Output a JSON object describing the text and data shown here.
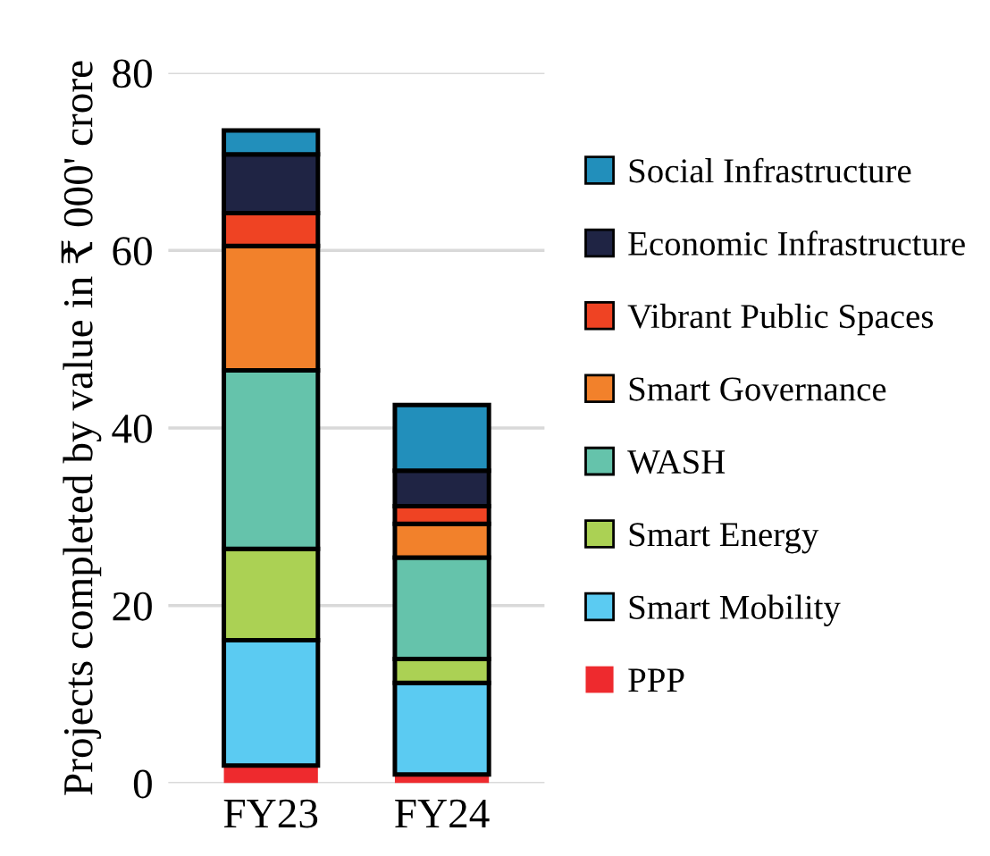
{
  "chart_data": {
    "type": "bar",
    "stacked": true,
    "ylabel": "Projects completed by value in ₹ 000' crore",
    "categories": [
      "FY23",
      "FY24"
    ],
    "series": [
      {
        "name": "PPP",
        "color": "#ee2a2e",
        "values": [
          2.0,
          1.0
        ]
      },
      {
        "name": "Smart Mobility",
        "color": "#5bcbf2",
        "values": [
          14.1,
          10.3
        ]
      },
      {
        "name": "Smart Energy",
        "color": "#abd154",
        "values": [
          10.3,
          2.7
        ]
      },
      {
        "name": "WASH",
        "color": "#65c3ab",
        "values": [
          20.1,
          11.4
        ]
      },
      {
        "name": "Smart Governance",
        "color": "#f2812b",
        "values": [
          14.0,
          3.8
        ]
      },
      {
        "name": "Vibrant Public Spaces",
        "color": "#ef4323",
        "values": [
          3.7,
          2.0
        ]
      },
      {
        "name": "Economic Infrastructure",
        "color": "#1f2444",
        "values": [
          6.6,
          4.0
        ]
      },
      {
        "name": "Social Infrastructure",
        "color": "#228fbb",
        "values": [
          2.7,
          7.4
        ]
      }
    ],
    "ylim": [
      0,
      80
    ],
    "yticks": [
      0,
      20,
      40,
      60,
      80
    ],
    "grid": "y",
    "legend": "right"
  }
}
